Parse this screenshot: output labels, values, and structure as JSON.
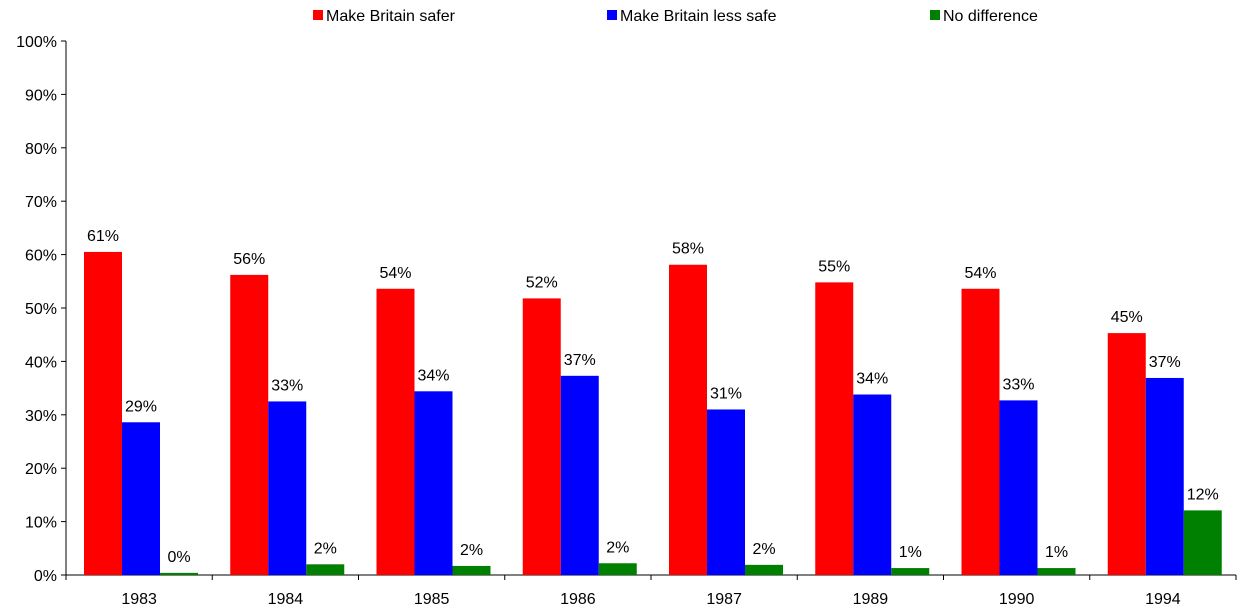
{
  "chart_data": {
    "type": "bar",
    "categories": [
      "1983",
      "1984",
      "1985",
      "1986",
      "1987",
      "1989",
      "1990",
      "1994"
    ],
    "series": [
      {
        "name": "Make Britain safer",
        "color": "#ff0000",
        "values": [
          60.5,
          56.2,
          53.6,
          51.8,
          58.1,
          54.8,
          53.6,
          45.3
        ],
        "labels": [
          "61%",
          "56%",
          "54%",
          "52%",
          "58%",
          "55%",
          "54%",
          "45%"
        ]
      },
      {
        "name": "Make Britain less safe",
        "color": "#0000ff",
        "values": [
          28.6,
          32.5,
          34.4,
          37.3,
          31.0,
          33.8,
          32.7,
          36.9
        ],
        "labels": [
          "29%",
          "33%",
          "34%",
          "37%",
          "31%",
          "34%",
          "33%",
          "37%"
        ]
      },
      {
        "name": "No difference",
        "color": "#008000",
        "values": [
          0.4,
          2.0,
          1.7,
          2.2,
          1.9,
          1.3,
          1.3,
          12.1
        ],
        "labels": [
          "0%",
          "2%",
          "2%",
          "2%",
          "2%",
          "1%",
          "1%",
          "12%"
        ]
      }
    ],
    "ylim": [
      0,
      100
    ],
    "yticks": [
      "0%",
      "10%",
      "20%",
      "30%",
      "40%",
      "50%",
      "60%",
      "70%",
      "80%",
      "90%",
      "100%"
    ],
    "legend_position": "top-center",
    "grid": false
  }
}
